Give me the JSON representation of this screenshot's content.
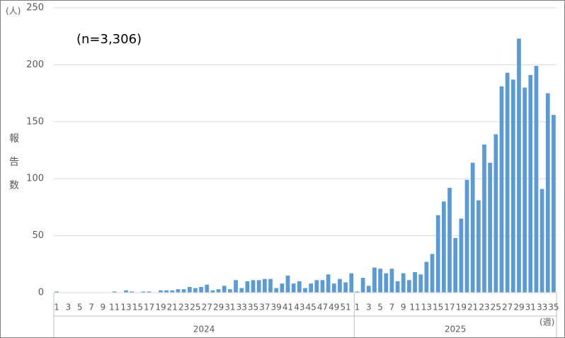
{
  "chart_data": {
    "type": "bar",
    "y_unit": "(人)",
    "y_label": "報告数",
    "x_unit": "(週)",
    "annotation": "(n=3,306)",
    "color": "#5b9bd5",
    "ylim": [
      0,
      250
    ],
    "yticks": [
      0,
      50,
      100,
      150,
      200,
      250
    ],
    "grid": true,
    "groups": [
      {
        "name": "2024",
        "categories": [
          1,
          null,
          3,
          null,
          5,
          null,
          7,
          null,
          9,
          null,
          11,
          null,
          13,
          null,
          15,
          null,
          17,
          null,
          19,
          null,
          21,
          null,
          23,
          null,
          25,
          null,
          27,
          null,
          29,
          null,
          31,
          null,
          33,
          null,
          35,
          null,
          37,
          null,
          39,
          null,
          41,
          null,
          43,
          null,
          45,
          null,
          47,
          null,
          49,
          null,
          51,
          null
        ],
        "values": [
          1,
          0,
          0,
          0,
          0,
          0,
          0,
          0,
          0,
          0,
          1,
          0,
          2,
          1,
          0,
          1,
          1,
          0,
          2,
          2,
          2,
          3,
          3,
          5,
          4,
          5,
          7,
          2,
          3,
          6,
          3,
          11,
          4,
          10,
          11,
          11,
          12,
          12,
          4,
          8,
          15,
          8,
          10,
          4,
          8,
          11,
          11,
          16,
          8,
          12,
          9,
          17
        ]
      },
      {
        "name": "2025",
        "categories": [
          1,
          null,
          3,
          null,
          5,
          null,
          7,
          null,
          9,
          null,
          11,
          null,
          13,
          null,
          15,
          null,
          17,
          null,
          19,
          null,
          21,
          null,
          23,
          null,
          25,
          null,
          27,
          null,
          29,
          null,
          31,
          null,
          33,
          null,
          35
        ],
        "values": [
          1,
          13,
          6,
          22,
          21,
          17,
          21,
          10,
          17,
          11,
          18,
          16,
          27,
          34,
          68,
          80,
          92,
          48,
          65,
          99,
          114,
          81,
          130,
          114,
          139,
          181,
          193,
          187,
          223,
          180,
          191,
          199,
          91,
          175,
          156
        ]
      }
    ]
  }
}
